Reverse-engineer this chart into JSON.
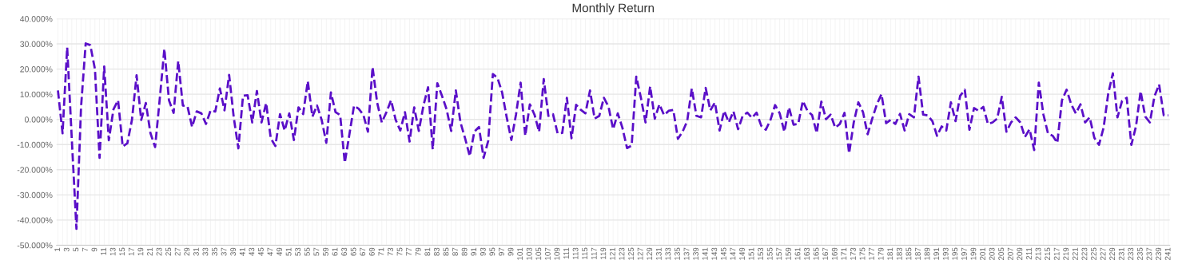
{
  "chart_data": {
    "type": "line",
    "title": "Monthly Return",
    "categories": [
      "1",
      null,
      "3",
      null,
      "5",
      null,
      "7",
      null,
      "9",
      null,
      "11",
      null,
      "13",
      null,
      "15",
      null,
      "17",
      null,
      "19",
      null,
      "21",
      null,
      "23",
      null,
      "25",
      null,
      "27",
      null,
      "29",
      null,
      "31",
      null,
      "33",
      null,
      "35",
      null,
      "37",
      null,
      "39",
      null,
      "41",
      null,
      "43",
      null,
      "45",
      null,
      "47",
      null,
      "49",
      null,
      "51",
      null,
      "53",
      null,
      "55",
      null,
      "57",
      null,
      "59",
      null,
      "61",
      null,
      "63",
      null,
      "65",
      null,
      "67",
      null,
      "69",
      null,
      "71",
      null,
      "73",
      null,
      "75",
      null,
      "77",
      null,
      "79",
      null,
      "81",
      null,
      "83",
      null,
      "85",
      null,
      "87",
      null,
      "89",
      null,
      "91",
      null,
      "93",
      null,
      "95",
      null,
      "97",
      null,
      "99",
      null,
      "101",
      null,
      "103",
      null,
      "105",
      null,
      "107",
      null,
      "109",
      null,
      "111",
      null,
      "113",
      null,
      "115",
      null,
      "117",
      null,
      "119",
      null,
      "121",
      null,
      "123",
      null,
      "125",
      null,
      "127",
      null,
      "129",
      null,
      "131",
      null,
      "133",
      null,
      "135",
      null,
      "137",
      null,
      "139",
      null,
      "141",
      null,
      "143",
      null,
      "145",
      null,
      "147",
      null,
      "149",
      null,
      "151",
      null,
      "153",
      null,
      "155",
      null,
      "157",
      null,
      "159",
      null,
      "161",
      null,
      "163",
      null,
      "165",
      null,
      "167",
      null,
      "169",
      null,
      "171",
      null,
      "173",
      null,
      "175",
      null,
      "177",
      null,
      "179",
      null,
      "181",
      null,
      "183",
      null,
      "185",
      null,
      "187",
      null,
      "189",
      null,
      "191",
      null,
      "193",
      null,
      "195",
      null,
      "197",
      null,
      "199",
      null,
      "201",
      null,
      "203",
      null,
      "205",
      null,
      "207",
      null,
      "209",
      null,
      "211",
      null,
      "213",
      null,
      "215",
      null,
      "217",
      null,
      "219",
      null,
      "221",
      null,
      "223",
      null,
      "225",
      null,
      "227",
      null,
      "229",
      null,
      "231",
      null,
      "233",
      null,
      "235",
      null,
      "237",
      null,
      "239",
      null,
      "241"
    ],
    "series": [
      {
        "color": "#5a0fc8",
        "values": [
          11.5,
          -5.5,
          28.6,
          -8,
          -43.5,
          5,
          30.2,
          29.5,
          20,
          -15.3,
          21,
          -8.3,
          4,
          7.6,
          -10.8,
          -9.5,
          -0.2,
          17.5,
          -0.2,
          6.5,
          -5.5,
          -11,
          8,
          28,
          7.6,
          2.6,
          23.2,
          5.5,
          5.2,
          -3,
          3.2,
          2.4,
          -1.8,
          3.6,
          3.1,
          12.3,
          3.6,
          17.7,
          0.8,
          -11.5,
          9.4,
          9.6,
          -1.2,
          11.3,
          -1.2,
          6.5,
          -7.5,
          -10.6,
          2.1,
          -4.4,
          2.4,
          -8.2,
          4.8,
          2.1,
          15.2,
          1.1,
          5.5,
          -0.2,
          -9.3,
          10.7,
          2.9,
          1.7,
          -17.2,
          -5.9,
          5.5,
          4.2,
          1.9,
          -4.9,
          20.8,
          6.6,
          -1.2,
          2.9,
          7.6,
          -0.2,
          -4.4,
          2.9,
          -8.8,
          4.8,
          -4.6,
          5.5,
          12.8,
          -11.9,
          14.4,
          9.4,
          4,
          -4.6,
          11.5,
          -1.2,
          -7.5,
          -14.6,
          -4.9,
          -3,
          -15.3,
          -8.5,
          18,
          16.5,
          10.7,
          0.8,
          -8.2,
          1.9,
          14.6,
          -6.5,
          6,
          1.9,
          -4.9,
          16,
          1.4,
          2.1,
          -5.6,
          -5.4,
          8.6,
          -7.5,
          5.8,
          3.8,
          2.4,
          11.5,
          0.3,
          1.4,
          8.6,
          5,
          -3.9,
          2.4,
          -3.3,
          -11.4,
          -10.4,
          17,
          8.6,
          -1.2,
          13.1,
          0.3,
          6,
          1.7,
          3.4,
          3.8,
          -7.7,
          -4.9,
          -0.7,
          12.3,
          1.4,
          0.8,
          12.5,
          3.6,
          6.7,
          -4.4,
          3.4,
          -1.2,
          3.2,
          -3.9,
          1.4,
          2.7,
          0.6,
          2.7,
          -2.5,
          -4.1,
          -0.2,
          5.7,
          2.4,
          -4.9,
          4.8,
          -2.1,
          -1.8,
          7.3,
          3.4,
          1.7,
          -5.4,
          7.1,
          0.1,
          1.9,
          -3.3,
          -1.8,
          2.6,
          -13.5,
          -1.2,
          6.8,
          2.9,
          -5.9,
          0.3,
          6,
          10,
          -1.5,
          -0.2,
          -1.8,
          2.2,
          -4.4,
          2.1,
          0.8,
          17,
          1.9,
          1.6,
          -0.7,
          -6.5,
          -2.8,
          -4.4,
          6.8,
          -0.7,
          9.4,
          11.8,
          -4.1,
          4.5,
          3.4,
          5,
          -1.8,
          -1.2,
          0.3,
          9,
          -4.9,
          -1.2,
          0.8,
          -1.2,
          -7,
          -3.9,
          -12.2,
          14.6,
          1.9,
          -5.7,
          -6.5,
          -9.3,
          7.6,
          11.8,
          6,
          2.4,
          6,
          -1.2,
          0.8,
          -7.3,
          -10.1,
          -3.3,
          10.2,
          18.3,
          0.8,
          7.4,
          8.6,
          -10.1,
          -2.8,
          11.2,
          1.1,
          -1.2,
          9.2,
          13.9,
          1.6,
          1.6
        ]
      }
    ],
    "ylim": [
      -50,
      40
    ],
    "yticks": [
      {
        "value": -50,
        "label": "-50.000%"
      },
      {
        "value": -40,
        "label": "-40.000%"
      },
      {
        "value": -30,
        "label": "-30.000%"
      },
      {
        "value": -20,
        "label": "-20.000%"
      },
      {
        "value": -10,
        "label": "-10.000%"
      },
      {
        "value": 0,
        "label": "0.000%"
      },
      {
        "value": 10,
        "label": "10.000%"
      },
      {
        "value": 20,
        "label": "20.000%"
      },
      {
        "value": 30,
        "label": "30.000%"
      },
      {
        "value": 40,
        "label": "40.000%"
      }
    ],
    "grid": true,
    "marker": "none",
    "line_style": "dashed"
  }
}
